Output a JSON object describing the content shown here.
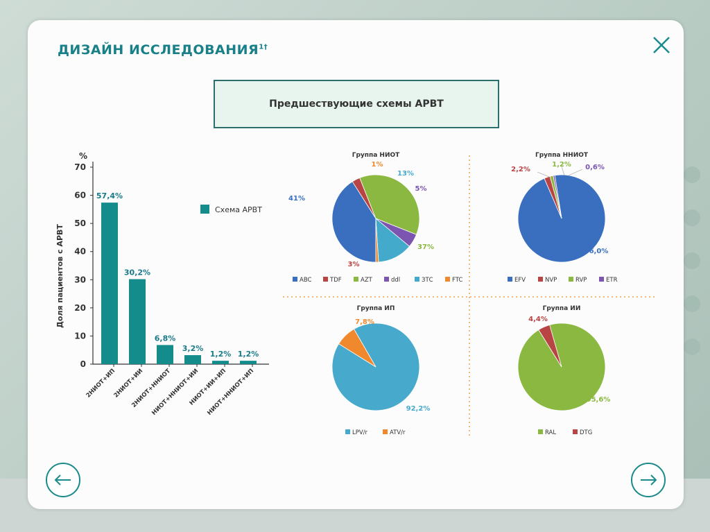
{
  "page": {
    "title": "ДИЗАЙН ИССЛЕДОВАНИЯ",
    "title_sup": "1†",
    "box_label": "Предшествующие схемы АРВТ"
  },
  "colors": {
    "teal": "#1a8a8a",
    "bar": "#148c8c",
    "dotted": "#f0a050"
  },
  "icons": {
    "close": "close-icon",
    "prev": "arrow-left-icon",
    "next": "arrow-right-icon"
  },
  "chart_data": [
    {
      "type": "bar",
      "ylabel": "Доля пациентов с АРВТ",
      "yunit": "%",
      "ylim": [
        0,
        70
      ],
      "yticks": [
        "0",
        "10",
        "20",
        "30",
        "40",
        "50",
        "60",
        "70"
      ],
      "legend": "Схема АРВТ",
      "categories": [
        "2НИОТ+ИП",
        "2НИОТ+ИИ",
        "2НИОТ+ННИОТ",
        "НИОТ+ННИОТ+ИИ",
        "НИОТ+ИИ+ИП",
        "НИОТ+ННИОТ+ИП"
      ],
      "values": [
        57.4,
        30.2,
        6.8,
        3.2,
        1.2,
        1.2
      ],
      "labels": [
        "57,4%",
        "30,2%",
        "6,8%",
        "3,2%",
        "1,2%",
        "1,2%"
      ]
    },
    {
      "type": "pie",
      "title": "Группа НИОТ",
      "slices": [
        {
          "name": "ABC",
          "value": 41,
          "label": "41%",
          "color": "#3a6fc0"
        },
        {
          "name": "TDF",
          "value": 3,
          "label": "3%",
          "color": "#b84444"
        },
        {
          "name": "AZT",
          "value": 37,
          "label": "37%",
          "color": "#8ab840"
        },
        {
          "name": "ddl",
          "value": 5,
          "label": "5%",
          "color": "#7b55b0"
        },
        {
          "name": "ЗТС",
          "value": 13,
          "label": "13%",
          "color": "#44aacc"
        },
        {
          "name": "FTC",
          "value": 1,
          "label": "1%",
          "color": "#f0892d"
        }
      ]
    },
    {
      "type": "pie",
      "title": "Группа ННИОТ",
      "slices": [
        {
          "name": "EFV",
          "value": 96.0,
          "label": "96,0%",
          "color": "#3a6fc0"
        },
        {
          "name": "NVP",
          "value": 2.2,
          "label": "2,2%",
          "color": "#b84444"
        },
        {
          "name": "RVP",
          "value": 1.2,
          "label": "1,2%",
          "color": "#8ab840"
        },
        {
          "name": "ETR",
          "value": 0.6,
          "label": "0,6%",
          "color": "#7b55b0"
        }
      ]
    },
    {
      "type": "pie",
      "title": "Группа ИП",
      "slices": [
        {
          "name": "LPV/r",
          "value": 92.2,
          "label": "92,2%",
          "color": "#47a9cc"
        },
        {
          "name": "ATV/r",
          "value": 7.8,
          "label": "7,8%",
          "color": "#f0892d"
        }
      ]
    },
    {
      "type": "pie",
      "title": "Группа ИИ",
      "slices": [
        {
          "name": "RAL",
          "value": 95.6,
          "label": "95,6%",
          "color": "#8ab840"
        },
        {
          "name": "DTG",
          "value": 4.4,
          "label": "4,4%",
          "color": "#b84444"
        }
      ]
    }
  ]
}
